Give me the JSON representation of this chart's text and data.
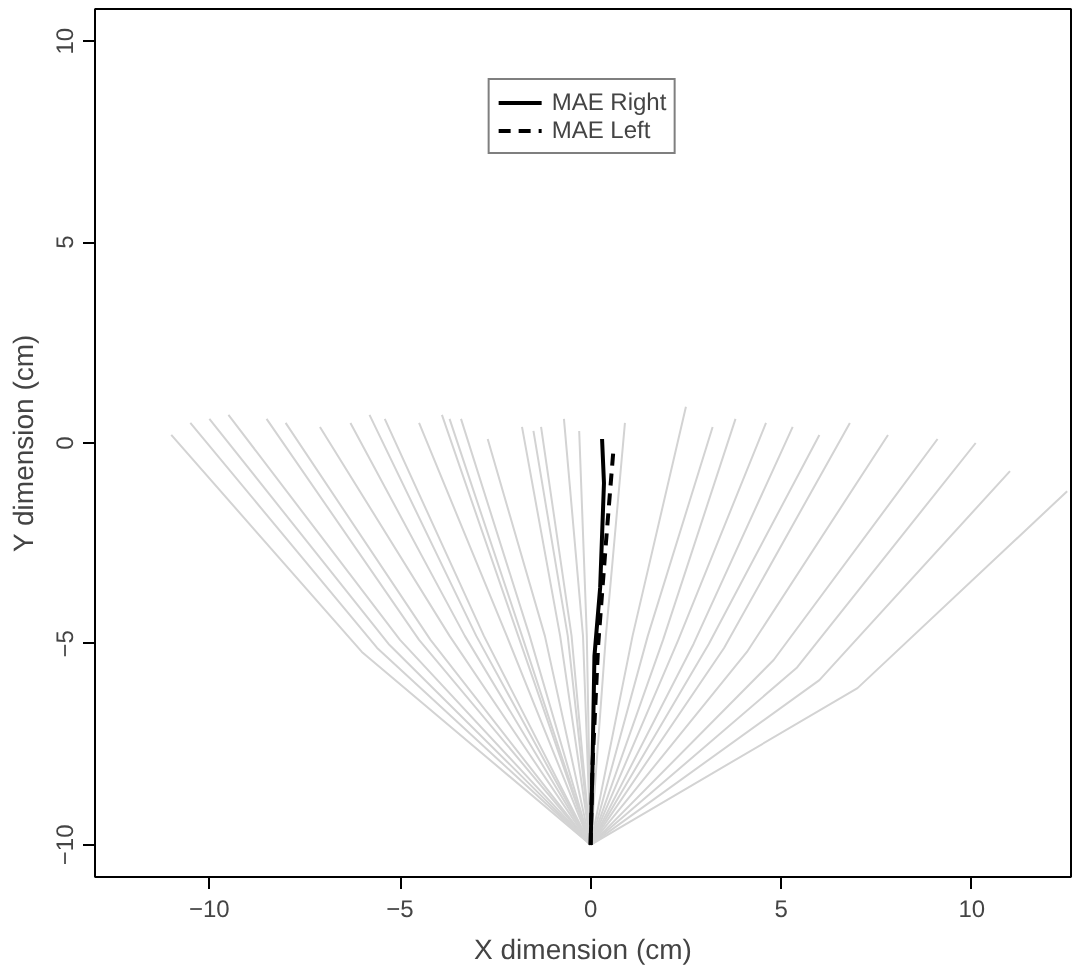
{
  "chart_data": {
    "type": "line",
    "xlabel": "X dimension (cm)",
    "ylabel": "Y dimension (cm)",
    "xlim": [
      -13,
      12.6
    ],
    "ylim": [
      -10.8,
      10.8
    ],
    "xticks": [
      {
        "value": -10,
        "label": "−10"
      },
      {
        "value": -5,
        "label": "−5"
      },
      0,
      5,
      10
    ],
    "yticks": [
      {
        "value": -10,
        "label": "−10"
      },
      {
        "value": -5,
        "label": "−5"
      },
      0,
      5,
      10
    ],
    "grid": false,
    "legend": "top",
    "line_style": "solid",
    "series": [
      {
        "color": "#d3d3d3",
        "x": [
          0,
          -6,
          -11
        ],
        "values": [
          -10,
          -5.2,
          0.2
        ]
      },
      {
        "color": "#d3d3d3",
        "x": [
          0,
          -5.6,
          -10.5
        ],
        "values": [
          -10,
          -5.1,
          0.5
        ]
      },
      {
        "color": "#d3d3d3",
        "x": [
          0,
          -5.3,
          -10
        ],
        "values": [
          -10,
          -5,
          0.6
        ]
      },
      {
        "color": "#d3d3d3",
        "x": [
          0,
          -5,
          -9.5
        ],
        "values": [
          -10,
          -4.9,
          0.7
        ]
      },
      {
        "color": "#d3d3d3",
        "x": [
          0,
          -4.5,
          -8.5
        ],
        "values": [
          -10,
          -4.9,
          0.6
        ]
      },
      {
        "color": "#d3d3d3",
        "x": [
          0,
          -4.2,
          -8
        ],
        "values": [
          -10,
          -4.9,
          0.5
        ]
      },
      {
        "color": "#d3d3d3",
        "x": [
          0,
          -3.7,
          -7.1
        ],
        "values": [
          -10,
          -4.8,
          0.4
        ]
      },
      {
        "color": "#d3d3d3",
        "x": [
          0,
          -3.3,
          -6.3
        ],
        "values": [
          -10,
          -4.8,
          0.5
        ]
      },
      {
        "color": "#d3d3d3",
        "x": [
          0,
          -3,
          -5.8
        ],
        "values": [
          -10,
          -4.8,
          0.7
        ]
      },
      {
        "color": "#d3d3d3",
        "x": [
          0,
          -2.8,
          -5.4
        ],
        "values": [
          -10,
          -4.8,
          0.6
        ]
      },
      {
        "color": "#d3d3d3",
        "x": [
          0,
          -2.2,
          -4.5
        ],
        "values": [
          -10,
          -4.8,
          0.5
        ]
      },
      {
        "color": "#d3d3d3",
        "x": [
          0,
          -1.9,
          -3.9
        ],
        "values": [
          -10,
          -4.8,
          0.7
        ]
      },
      {
        "color": "#d3d3d3",
        "x": [
          0,
          -1.8,
          -3.7
        ],
        "values": [
          -10,
          -4.8,
          0.6
        ]
      },
      {
        "color": "#d3d3d3",
        "x": [
          0,
          -1.6,
          -3.4
        ],
        "values": [
          -10,
          -4.8,
          0.6
        ]
      },
      {
        "color": "#d3d3d3",
        "x": [
          0,
          -1.2,
          -2.7
        ],
        "values": [
          -10,
          -4.8,
          0.1
        ]
      },
      {
        "color": "#d3d3d3",
        "x": [
          0,
          -0.8,
          -1.8
        ],
        "values": [
          -10,
          -4.8,
          0.4
        ]
      },
      {
        "color": "#d3d3d3",
        "x": [
          0,
          -0.6,
          -1.5
        ],
        "values": [
          -10,
          -4.8,
          0.3
        ]
      },
      {
        "color": "#d3d3d3",
        "x": [
          0,
          -0.5,
          -1.3
        ],
        "values": [
          -10,
          -4.8,
          0.4
        ]
      },
      {
        "color": "#d3d3d3",
        "x": [
          0,
          -0.2,
          -0.7
        ],
        "values": [
          -10,
          -4.8,
          0.6
        ]
      },
      {
        "color": "#d3d3d3",
        "x": [
          0,
          -0.1,
          -0.3
        ],
        "values": [
          -10,
          -4.8,
          0.3
        ]
      },
      {
        "color": "#d3d3d3",
        "x": [
          0,
          0.4,
          0.9
        ],
        "values": [
          -10,
          -4.8,
          0.5
        ]
      },
      {
        "color": "#d3d3d3",
        "x": [
          0,
          1.1,
          2.5
        ],
        "values": [
          -10,
          -4.8,
          0.9
        ]
      },
      {
        "color": "#d3d3d3",
        "x": [
          0,
          1.5,
          3.2
        ],
        "values": [
          -10,
          -4.8,
          0.4
        ]
      },
      {
        "color": "#d3d3d3",
        "x": [
          0,
          1.9,
          3.8
        ],
        "values": [
          -10,
          -4.9,
          0.6
        ]
      },
      {
        "color": "#d3d3d3",
        "x": [
          0,
          2.3,
          4.6
        ],
        "values": [
          -10,
          -4.9,
          0.5
        ]
      },
      {
        "color": "#d3d3d3",
        "x": [
          0,
          2.7,
          5.3
        ],
        "values": [
          -10,
          -5,
          0.4
        ]
      },
      {
        "color": "#d3d3d3",
        "x": [
          0,
          3.1,
          6
        ],
        "values": [
          -10,
          -5,
          0.2
        ]
      },
      {
        "color": "#d3d3d3",
        "x": [
          0,
          3.5,
          6.8
        ],
        "values": [
          -10,
          -5.1,
          0.5
        ]
      },
      {
        "color": "#d3d3d3",
        "x": [
          0,
          4.1,
          7.8
        ],
        "values": [
          -10,
          -5.2,
          0.2
        ]
      },
      {
        "color": "#d3d3d3",
        "x": [
          0,
          4.8,
          9.1
        ],
        "values": [
          -10,
          -5.4,
          0.1
        ]
      },
      {
        "color": "#d3d3d3",
        "x": [
          0,
          5.4,
          10.1
        ],
        "values": [
          -10,
          -5.6,
          0
        ]
      },
      {
        "color": "#d3d3d3",
        "x": [
          0,
          6,
          11
        ],
        "values": [
          -10,
          -5.9,
          -0.7
        ]
      },
      {
        "color": "#d3d3d3",
        "x": [
          0,
          7,
          12.5
        ],
        "values": [
          -10,
          -6.1,
          -1.2
        ]
      },
      {
        "name": "MAE Right",
        "color": "#000000",
        "line_style": "solid",
        "x": [
          0,
          0.05,
          0.1,
          0.25,
          0.35,
          0.3
        ],
        "values": [
          -10,
          -8,
          -5.3,
          -3.6,
          -1,
          0.1
        ]
      },
      {
        "name": "MAE Left",
        "color": "#000000",
        "line_style": "dashed",
        "x": [
          0,
          0.05,
          0.2,
          0.4,
          0.6
        ],
        "values": [
          -10,
          -8,
          -5,
          -2.5,
          -0.15
        ]
      }
    ]
  }
}
